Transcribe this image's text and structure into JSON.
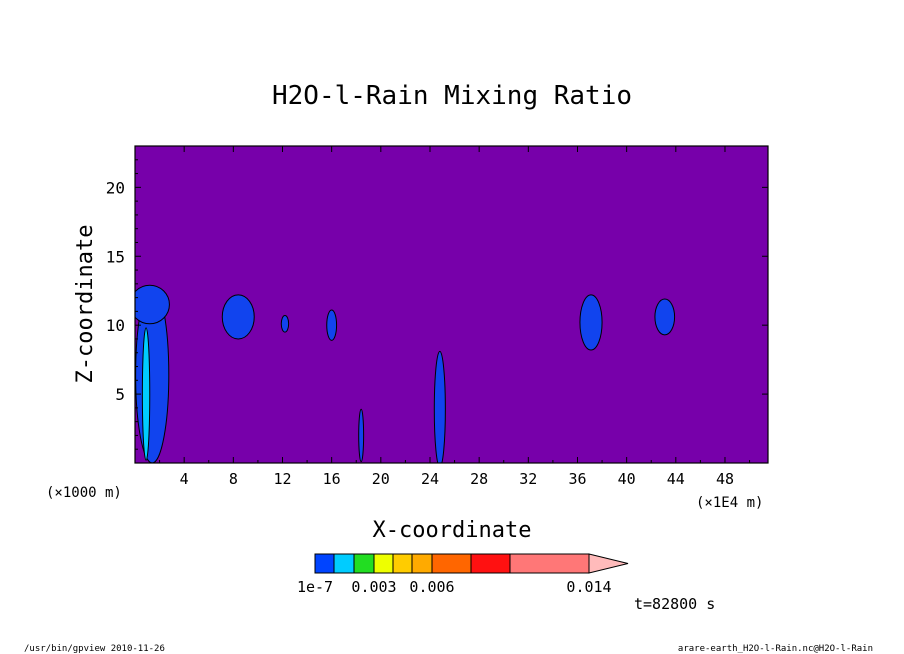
{
  "chart_data": {
    "type": "contour",
    "title": "H2O-l-Rain Mixing Ratio",
    "xlabel": "X-coordinate",
    "ylabel": "Z-coordinate",
    "x_unit_left": "(×1000 m)",
    "x_unit_right": "(×1E4 m)",
    "xlim": [
      0,
      51.5
    ],
    "ylim": [
      0,
      23
    ],
    "x_ticks": [
      4,
      8,
      12,
      16,
      20,
      24,
      28,
      32,
      36,
      40,
      44,
      48
    ],
    "y_ticks": [
      5,
      10,
      15,
      20
    ],
    "background_color": "#7700aa",
    "colorbar": {
      "levels": [
        1e-07,
        0.0015,
        0.003,
        0.0045,
        0.006,
        0.0075,
        0.009,
        0.0105,
        0.012,
        0.014
      ],
      "colors": [
        "#0044ff",
        "#00ccff",
        "#22dd22",
        "#eeff00",
        "#ffcc00",
        "#ffaa00",
        "#ff6600",
        "#ff1111",
        "#ff7777",
        "#ffbbbb"
      ],
      "labels": [
        {
          "text": "1e-7",
          "value": 1e-07
        },
        {
          "text": "0.003",
          "value": 0.003
        },
        {
          "text": "0.006",
          "value": 0.006
        },
        {
          "text": "0.014",
          "value": 0.014
        }
      ]
    },
    "time_label": "t=82800 s",
    "footer_left": "/usr/bin/gpview  2010-11-26",
    "footer_right": "arare-earth_H2O-l-Rain.nc@H2O-l-Rain",
    "blobs": [
      {
        "x": 1.4,
        "y": 6.4,
        "rx": 1.35,
        "ry": 6.4,
        "color": "#1144ee"
      },
      {
        "x": 1.2,
        "y": 11.5,
        "rx": 1.6,
        "ry": 1.4,
        "color": "#1144ee"
      },
      {
        "x": 0.9,
        "y": 5.0,
        "rx": 0.3,
        "ry": 4.8,
        "color": "#00ccff"
      },
      {
        "x": 8.4,
        "y": 10.6,
        "rx": 1.3,
        "ry": 1.6,
        "color": "#1144ee"
      },
      {
        "x": 12.2,
        "y": 10.1,
        "rx": 0.3,
        "ry": 0.6,
        "color": "#1144ee"
      },
      {
        "x": 16.0,
        "y": 10.0,
        "rx": 0.4,
        "ry": 1.1,
        "color": "#1144ee"
      },
      {
        "x": 18.4,
        "y": 2.0,
        "rx": 0.2,
        "ry": 1.9,
        "color": "#1144ee"
      },
      {
        "x": 24.8,
        "y": 3.9,
        "rx": 0.45,
        "ry": 4.2,
        "color": "#1144ee"
      },
      {
        "x": 37.1,
        "y": 10.2,
        "rx": 0.9,
        "ry": 2.0,
        "color": "#1144ee"
      },
      {
        "x": 43.1,
        "y": 10.6,
        "rx": 0.8,
        "ry": 1.3,
        "color": "#1144ee"
      }
    ]
  }
}
